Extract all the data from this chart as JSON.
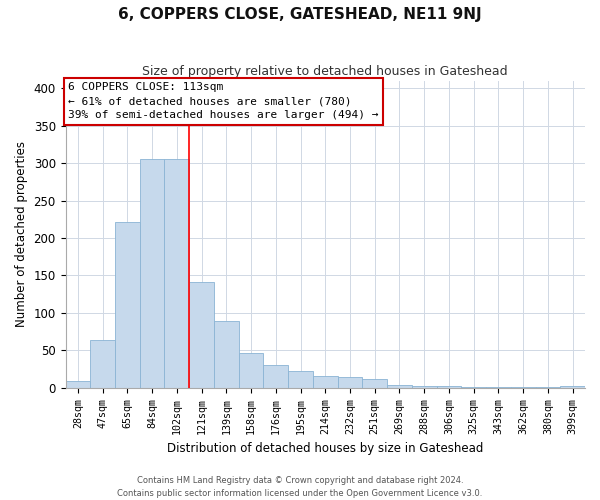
{
  "title": "6, COPPERS CLOSE, GATESHEAD, NE11 9NJ",
  "subtitle": "Size of property relative to detached houses in Gateshead",
  "xlabel": "Distribution of detached houses by size in Gateshead",
  "ylabel": "Number of detached properties",
  "bar_color": "#c6d9ec",
  "bar_edge_color": "#8ab4d4",
  "background_color": "#ffffff",
  "grid_color": "#d0d8e4",
  "bin_labels": [
    "28sqm",
    "47sqm",
    "65sqm",
    "84sqm",
    "102sqm",
    "121sqm",
    "139sqm",
    "158sqm",
    "176sqm",
    "195sqm",
    "214sqm",
    "232sqm",
    "251sqm",
    "269sqm",
    "288sqm",
    "306sqm",
    "325sqm",
    "343sqm",
    "362sqm",
    "380sqm",
    "399sqm"
  ],
  "bar_heights": [
    9,
    64,
    222,
    305,
    305,
    141,
    89,
    46,
    31,
    23,
    16,
    14,
    12,
    4,
    3,
    2,
    1,
    1,
    1,
    1,
    3
  ],
  "ylim": [
    0,
    410
  ],
  "red_line_x": 5.0,
  "annotation_line1": "6 COPPERS CLOSE: 113sqm",
  "annotation_line2": "← 61% of detached houses are smaller (780)",
  "annotation_line3": "39% of semi-detached houses are larger (494) →",
  "footer_line1": "Contains HM Land Registry data © Crown copyright and database right 2024.",
  "footer_line2": "Contains public sector information licensed under the Open Government Licence v3.0."
}
